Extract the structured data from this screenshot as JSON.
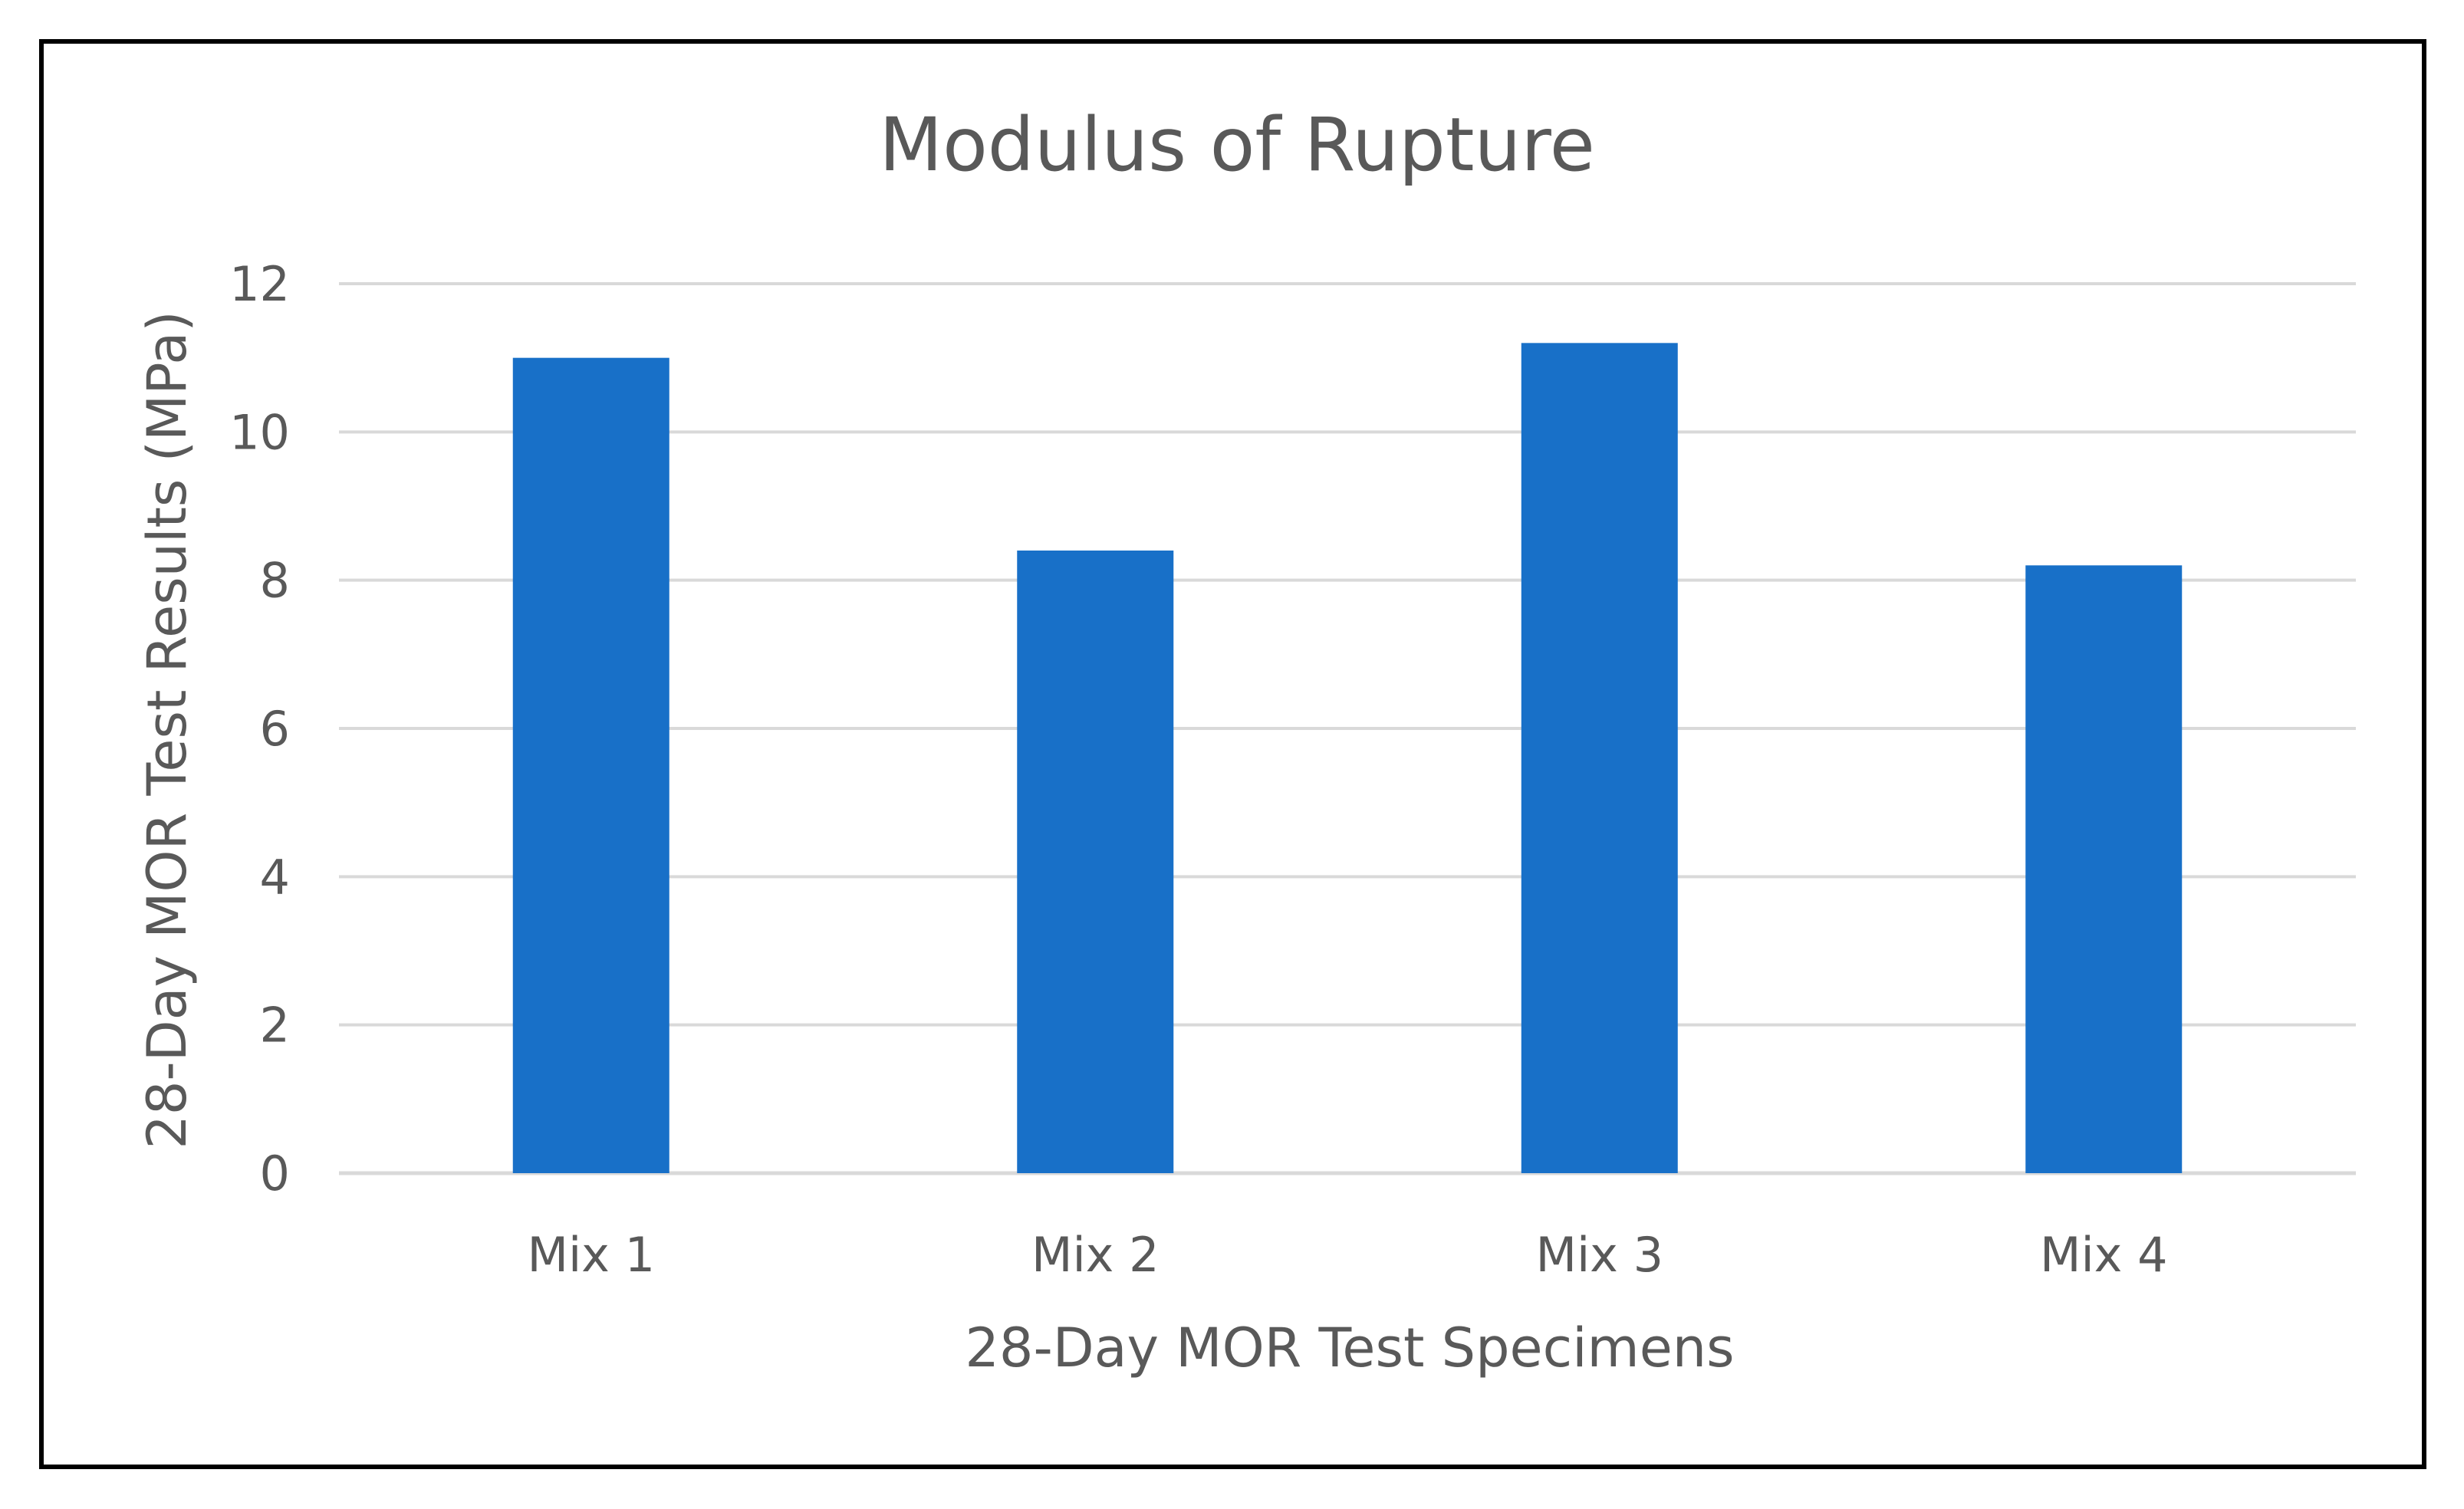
{
  "chart_data": {
    "type": "bar",
    "title": "Modulus of Rupture",
    "xlabel": "28-Day MOR Test Specimens",
    "ylabel": "28-Day MOR Test Results (MPa)",
    "categories": [
      "Mix 1",
      "Mix 2",
      "Mix 3",
      "Mix 4"
    ],
    "values": [
      11.0,
      8.4,
      11.2,
      8.2
    ],
    "ylim": [
      0,
      12
    ],
    "yticks": [
      "0",
      "2",
      "4",
      "6",
      "8",
      "10",
      "12"
    ],
    "grid": true,
    "legend": "none",
    "colors": {
      "bar": "#1870C8",
      "grid": "#D9D9D9",
      "text": "#595959",
      "frame": "#000000"
    }
  }
}
